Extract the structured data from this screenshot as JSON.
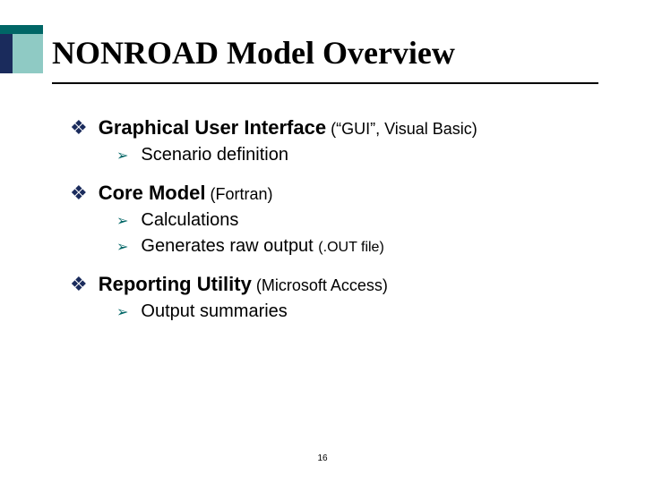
{
  "title": "NONROAD Model Overview",
  "colors": {
    "deco_top": "#006666",
    "deco_navy": "#1a2b5c",
    "deco_teal": "#8fcac4",
    "bullet1": "#1a2b5c",
    "bullet2": "#006666",
    "rule": "#000000",
    "text": "#000000",
    "background": "#ffffff"
  },
  "items": [
    {
      "main": "Graphical User Interface",
      "paren": " (“GUI”, Visual Basic)",
      "subs": [
        {
          "text": "Scenario definition",
          "paren": ""
        }
      ]
    },
    {
      "main": "Core Model",
      "paren": " (Fortran)",
      "subs": [
        {
          "text": "Calculations",
          "paren": ""
        },
        {
          "text": "Generates raw output ",
          "paren": "(.OUT file)"
        }
      ]
    },
    {
      "main": "Reporting Utility",
      "paren": " (Microsoft Access)",
      "subs": [
        {
          "text": "Output summaries",
          "paren": ""
        }
      ]
    }
  ],
  "page_number": "16",
  "bullet1_glyph": "❖",
  "bullet2_glyph": "➢",
  "typography": {
    "title_font": "Times New Roman",
    "title_size_pt": 36,
    "body_font": "Verdana",
    "lvl1_size_pt": 22,
    "lvl1_paren_size_pt": 18,
    "lvl2_size_pt": 20,
    "lvl2_paren_size_pt": 16,
    "pagenum_size_pt": 10
  }
}
